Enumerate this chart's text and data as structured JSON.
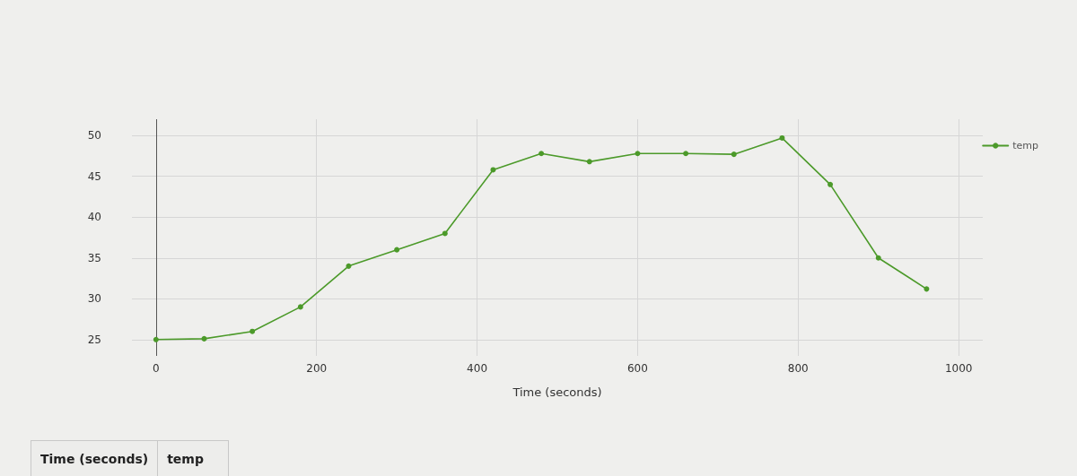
{
  "chart_data": {
    "type": "line",
    "xlabel": "Time (seconds)",
    "x": [
      0,
      60,
      120,
      180,
      240,
      300,
      360,
      420,
      480,
      540,
      600,
      660,
      720,
      780,
      840,
      900,
      960
    ],
    "series": [
      {
        "name": "temp",
        "color": "#4c9a2a",
        "values": [
          25,
          25.1,
          26,
          29,
          34,
          36,
          38,
          45.8,
          47.8,
          46.8,
          47.8,
          47.8,
          47.7,
          49.7,
          44,
          35,
          31.2
        ]
      }
    ],
    "xlim": [
      -30,
      1030
    ],
    "xticks": [
      0,
      200,
      400,
      600,
      800,
      1000
    ],
    "ylim": [
      23,
      52
    ],
    "yticks": [
      25,
      30,
      35,
      40,
      45,
      50
    ],
    "grid": true,
    "legend": "top right",
    "marker": "circle",
    "line_style": "solid",
    "annotations": [
      "Time (seconds)",
      "temp"
    ]
  }
}
